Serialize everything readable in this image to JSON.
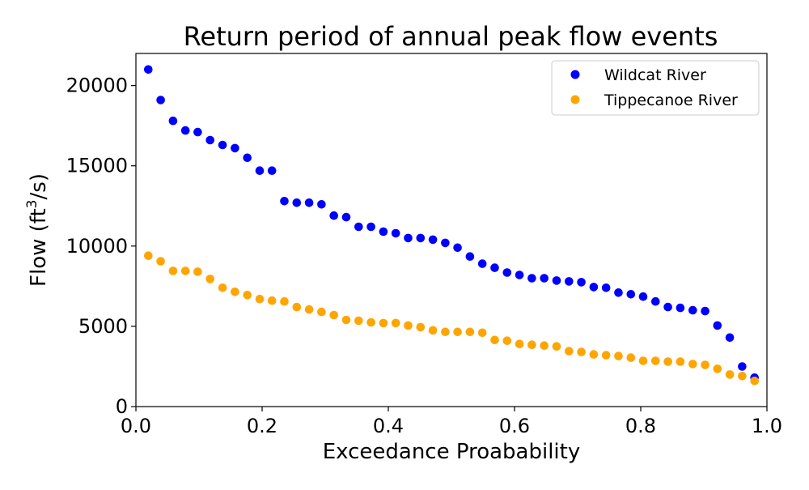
{
  "chart_data": {
    "type": "scatter",
    "title": "Return period of annual peak flow events",
    "xlabel": "Exceedance Proabability",
    "ylabel_parts": [
      "Flow (ft",
      "3",
      "/s)"
    ],
    "xlim": [
      0.0,
      1.0
    ],
    "ylim": [
      0,
      22000
    ],
    "xticks": [
      0.0,
      0.2,
      0.4,
      0.6,
      0.8,
      1.0
    ],
    "xtick_labels": [
      "0.0",
      "0.2",
      "0.4",
      "0.6",
      "0.8",
      "1.0"
    ],
    "yticks": [
      0,
      5000,
      10000,
      15000,
      20000
    ],
    "ytick_labels": [
      "0",
      "5000",
      "10000",
      "15000",
      "20000"
    ],
    "grid": false,
    "legend_position": "top-right",
    "x": [
      0.0196,
      0.0392,
      0.0588,
      0.0784,
      0.098,
      0.1176,
      0.1373,
      0.1569,
      0.1765,
      0.1961,
      0.2157,
      0.2353,
      0.2549,
      0.2745,
      0.2941,
      0.3137,
      0.3333,
      0.3529,
      0.3725,
      0.3922,
      0.4118,
      0.4314,
      0.451,
      0.4706,
      0.4902,
      0.5098,
      0.5294,
      0.549,
      0.5686,
      0.5882,
      0.6078,
      0.6275,
      0.6471,
      0.6667,
      0.6863,
      0.7059,
      0.7255,
      0.7451,
      0.7647,
      0.7843,
      0.8039,
      0.8235,
      0.8431,
      0.8627,
      0.8824,
      0.902,
      0.9216,
      0.9412,
      0.9608,
      0.9804
    ],
    "series": [
      {
        "name": "Wildcat River",
        "color": "#0000ff",
        "values": [
          21000,
          19100,
          17800,
          17200,
          17100,
          16600,
          16300,
          16100,
          15500,
          14700,
          14700,
          12800,
          12700,
          12700,
          12600,
          11900,
          11800,
          11200,
          11200,
          10900,
          10800,
          10500,
          10500,
          10400,
          10200,
          9900,
          9350,
          8900,
          8650,
          8350,
          8200,
          8000,
          8000,
          7850,
          7800,
          7750,
          7450,
          7400,
          7100,
          7000,
          6850,
          6550,
          6200,
          6150,
          6000,
          5950,
          5050,
          4300,
          2500,
          1800
        ]
      },
      {
        "name": "Tippecanoe River",
        "color": "#ffa500",
        "values": [
          9400,
          9050,
          8450,
          8450,
          8400,
          7950,
          7400,
          7150,
          6950,
          6700,
          6600,
          6550,
          6200,
          6050,
          5900,
          5700,
          5400,
          5350,
          5250,
          5200,
          5200,
          5050,
          4950,
          4750,
          4650,
          4650,
          4650,
          4600,
          4150,
          4100,
          3900,
          3850,
          3800,
          3750,
          3450,
          3400,
          3250,
          3200,
          3150,
          3050,
          2850,
          2850,
          2800,
          2800,
          2650,
          2600,
          2350,
          2000,
          1900,
          1600
        ]
      }
    ]
  }
}
